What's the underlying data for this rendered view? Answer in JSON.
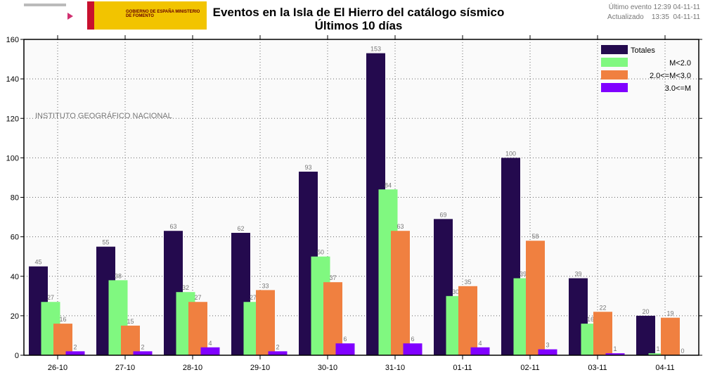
{
  "header": {
    "title": "Eventos en la Isla de El Hierro del catálogo sísmico",
    "subtitle": "Últimos 10 días",
    "last_event": "Último evento 12:39 04-11-11",
    "updated": "Actualizado    13:35  04-11-11",
    "logo_text": "GOBIERNO DE ESPAÑA  MINISTERIO DE FOMENTO"
  },
  "chart_data": {
    "type": "bar",
    "title": "Eventos en la Isla de El Hierro del catálogo sísmico",
    "subtitle": "Últimos 10 días",
    "watermark": "INSTITUTO GEOGRÁFICO NACIONAL",
    "categories": [
      "26-10",
      "27-10",
      "28-10",
      "29-10",
      "30-10",
      "31-10",
      "01-11",
      "02-11",
      "03-11",
      "04-11"
    ],
    "series": [
      {
        "name": "Totales",
        "color": "#240a4e",
        "values": [
          45,
          55,
          63,
          62,
          93,
          153,
          69,
          100,
          39,
          20
        ]
      },
      {
        "name": "M<2.0",
        "color": "#80f880",
        "values": [
          27,
          38,
          32,
          27,
          50,
          84,
          30,
          39,
          16,
          1
        ]
      },
      {
        "name": "2.0<=M<3.0",
        "color": "#f08040",
        "values": [
          16,
          15,
          27,
          33,
          37,
          63,
          35,
          58,
          22,
          19
        ]
      },
      {
        "name": "3.0<=M",
        "color": "#8000ff",
        "values": [
          2,
          2,
          4,
          2,
          6,
          6,
          4,
          3,
          1,
          0
        ]
      }
    ],
    "ylim": [
      0,
      160
    ],
    "yticks": [
      0,
      20,
      40,
      60,
      80,
      100,
      120,
      140,
      160
    ],
    "grid": true,
    "legend": "top-right"
  }
}
